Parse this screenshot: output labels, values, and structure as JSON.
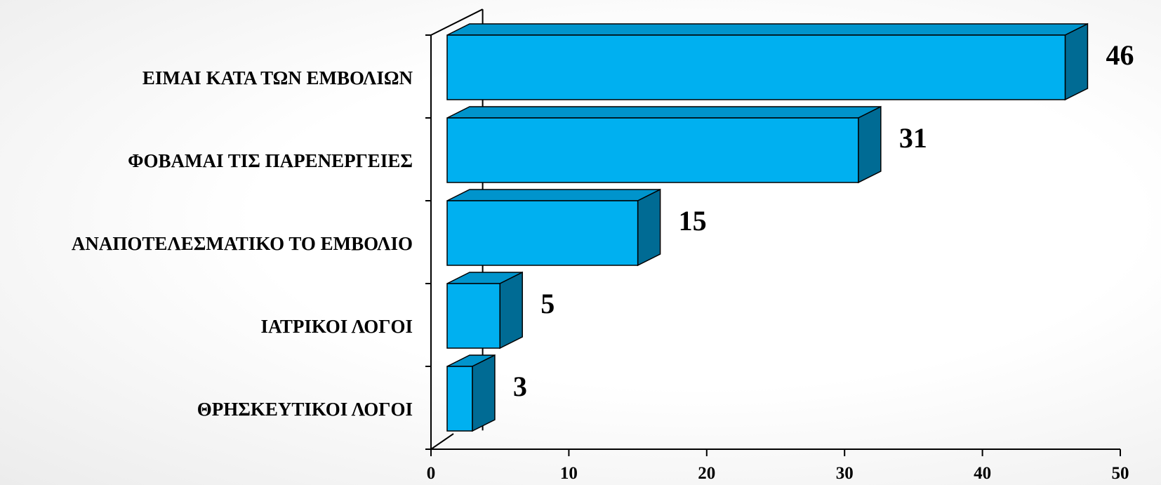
{
  "chart_data": {
    "type": "bar",
    "orientation": "horizontal",
    "style": "3d",
    "categories": [
      "ΕΙΜΑΙ ΚΑΤΑ ΤΩΝ ΕΜΒΟΛΙΩΝ",
      "ΦΟΒΑΜΑΙ ΤΙΣ ΠΑΡΕΝΕΡΓΕΙΕΣ",
      "ΑΝΑΠΟΤΕΛΕΣΜΑΤΙΚΟ ΤΟ ΕΜΒΟΛΙΟ",
      "ΙΑΤΡΙΚΟΙ ΛΟΓΟΙ",
      "ΘΡΗΣΚΕΥΤΙΚΟΙ ΛΟΓΟΙ"
    ],
    "values": [
      46,
      31,
      15,
      5,
      3
    ],
    "value_labels": [
      "46",
      "31",
      "15",
      "5",
      "3"
    ],
    "xlim": [
      0,
      50
    ],
    "x_ticks": [
      "0",
      "10",
      "20",
      "30",
      "40",
      "50"
    ],
    "title": "",
    "xlabel": "",
    "ylabel": "",
    "grid": false,
    "legend": "none",
    "colors": {
      "front": "#00B0F0",
      "top": "#0094CC",
      "side": "#006B94",
      "outline": "#000000"
    }
  }
}
